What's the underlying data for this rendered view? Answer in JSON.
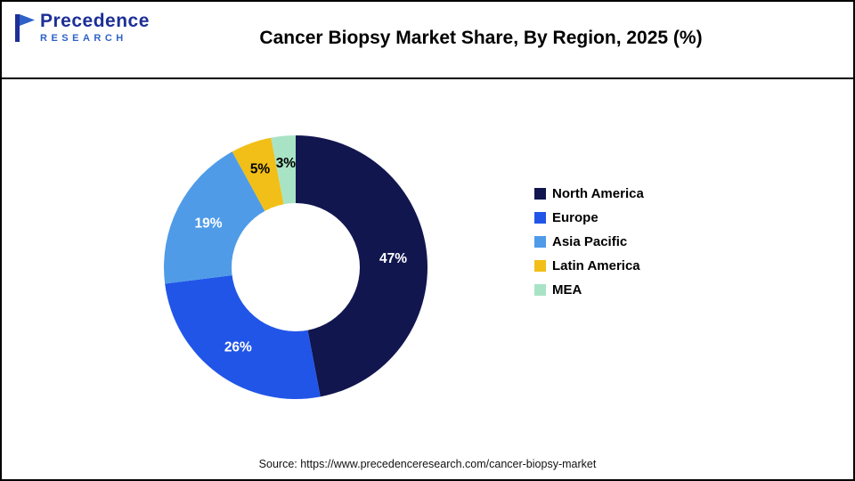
{
  "header": {
    "logo": {
      "line1": "Precedence",
      "line2": "RESEARCH"
    },
    "title": "Cancer Biopsy Market Share, By Region, 2025 (%)"
  },
  "chart_data": {
    "type": "pie",
    "variant": "donut",
    "title": "Cancer Biopsy Market Share, By Region, 2025 (%)",
    "value_suffix": "%",
    "legend_position": "right",
    "start_angle_deg": 0,
    "direction": "clockwise",
    "series": [
      {
        "label": "North America",
        "value": 47,
        "color": "#11164f",
        "label_color": "#ffffff"
      },
      {
        "label": "Europe",
        "value": 26,
        "color": "#2155e8",
        "label_color": "#ffffff"
      },
      {
        "label": "Asia Pacific",
        "value": 19,
        "color": "#4f9be8",
        "label_color": "#ffffff"
      },
      {
        "label": "Latin America",
        "value": 5,
        "color": "#f1bf17",
        "label_color": "#000000"
      },
      {
        "label": "MEA",
        "value": 3,
        "color": "#a9e3c5",
        "label_color": "#000000"
      }
    ]
  },
  "footer": {
    "source": "Source: https://www.precedenceresearch.com/cancer-biopsy-market"
  }
}
